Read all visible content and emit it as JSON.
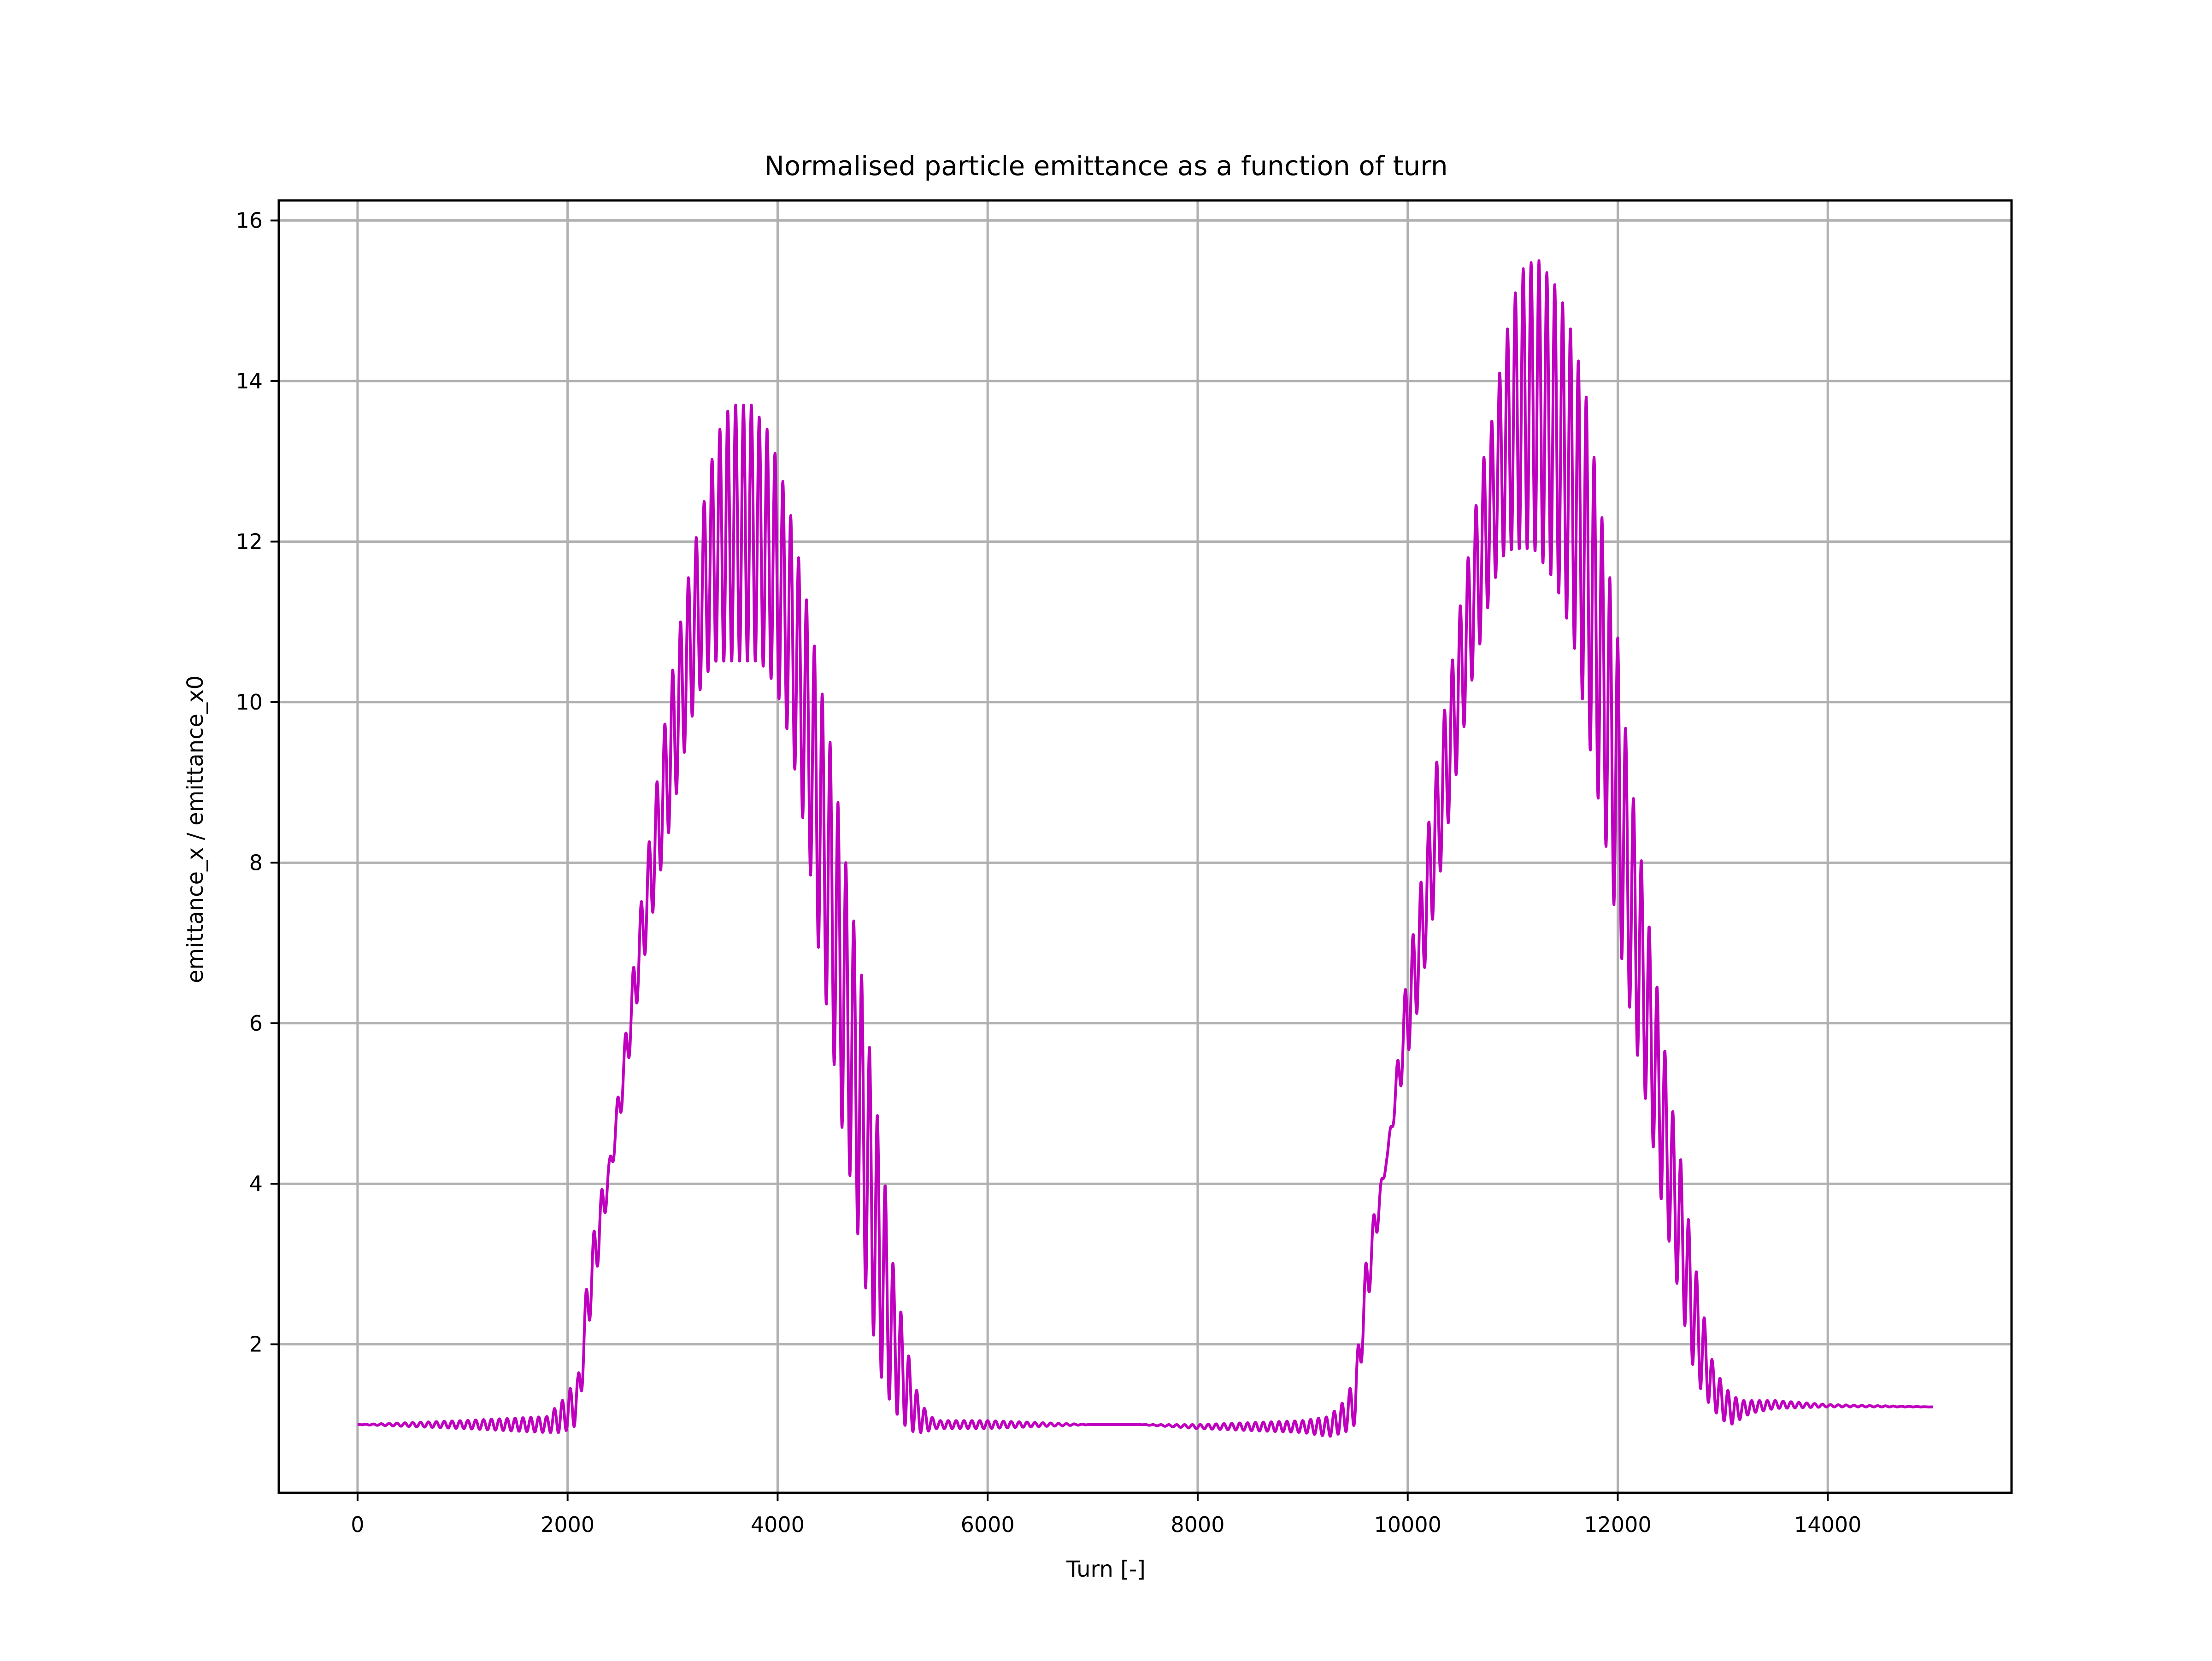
{
  "chart_data": {
    "type": "line",
    "title": "Normalised particle emittance as a function of turn",
    "xlabel": "Turn [-]",
    "ylabel": "emittance_x / emittance_x0",
    "xlim": [
      -750,
      15750
    ],
    "ylim": [
      0.15,
      16.25
    ],
    "xticks": [
      0,
      2000,
      4000,
      6000,
      8000,
      10000,
      12000,
      14000
    ],
    "yticks": [
      2,
      4,
      6,
      8,
      10,
      12,
      14,
      16
    ],
    "grid": true,
    "legend": "none",
    "series": [
      {
        "color": "#bf00bf",
        "description_of_shape": "",
        "x": [
          0,
          1000,
          1800,
          1950,
          2100,
          2200,
          2300,
          2400,
          2500,
          2600,
          2700,
          2800,
          2900,
          3000,
          3100,
          3200,
          3300,
          3400,
          3500,
          3600,
          3700,
          3750,
          3800,
          3900,
          4000,
          4100,
          4200,
          4300,
          4400,
          4500,
          4600,
          4700,
          4800,
          4900,
          5000,
          5100,
          5200,
          5300,
          5400,
          5500,
          5600,
          6000,
          7000,
          7450,
          8000,
          9000,
          9250,
          9400,
          9500,
          9600,
          9700,
          9800,
          9900,
          10000,
          10100,
          10200,
          10300,
          10400,
          10500,
          10600,
          10700,
          10800,
          10900,
          11000,
          11100,
          11200,
          11250,
          11300,
          11400,
          11500,
          11600,
          11700,
          11800,
          11900,
          12000,
          12100,
          12200,
          12300,
          12400,
          12500,
          12600,
          12700,
          12800,
          12900,
          13000,
          13100,
          13200,
          13300,
          13500,
          14000,
          15000
        ],
        "env_upper": [
          1.0,
          1.05,
          1.1,
          1.3,
          1.6,
          3.0,
          3.8,
          4.3,
          5.3,
          6.4,
          7.5,
          8.5,
          9.5,
          10.4,
          11.2,
          11.9,
          12.5,
          13.2,
          13.6,
          13.7,
          13.7,
          13.7,
          13.6,
          13.4,
          13.0,
          12.5,
          11.8,
          11.1,
          10.3,
          9.5,
          8.5,
          7.5,
          6.6,
          5.4,
          4.3,
          3.0,
          2.2,
          1.5,
          1.2,
          1.05,
          1.05,
          1.05,
          1.0,
          1.0,
          1.0,
          1.05,
          1.1,
          1.3,
          1.6,
          3.0,
          3.8,
          4.3,
          5.5,
          6.7,
          7.5,
          8.5,
          9.5,
          10.3,
          11.2,
          12.0,
          12.9,
          13.5,
          14.3,
          15.0,
          15.4,
          15.5,
          15.5,
          15.4,
          15.2,
          14.9,
          14.4,
          13.8,
          12.8,
          11.8,
          10.8,
          9.3,
          8.3,
          7.2,
          6.2,
          5.1,
          4.3,
          3.3,
          2.5,
          1.8,
          1.5,
          1.35,
          1.3,
          1.3,
          1.3,
          1.25,
          1.22
        ],
        "env_lower": [
          1.0,
          0.95,
          0.9,
          0.9,
          1.0,
          2.2,
          3.1,
          4.0,
          4.8,
          5.7,
          6.6,
          7.3,
          8.0,
          8.6,
          9.3,
          9.9,
          10.3,
          10.5,
          10.5,
          10.5,
          10.5,
          10.5,
          10.5,
          10.4,
          10.1,
          9.6,
          8.9,
          8.0,
          6.8,
          5.9,
          4.8,
          4.0,
          3.0,
          2.2,
          1.5,
          1.2,
          1.0,
          0.9,
          0.9,
          0.95,
          0.95,
          0.95,
          1.0,
          1.0,
          0.95,
          0.9,
          0.85,
          0.9,
          1.0,
          2.3,
          3.3,
          4.3,
          5.0,
          5.6,
          6.2,
          7.0,
          7.8,
          8.6,
          9.4,
          10.2,
          10.8,
          11.4,
          11.8,
          11.9,
          11.9,
          11.9,
          11.8,
          11.7,
          11.5,
          11.1,
          10.6,
          9.7,
          8.9,
          8.1,
          7.1,
          6.3,
          5.5,
          4.8,
          3.9,
          3.2,
          2.5,
          1.8,
          1.4,
          1.2,
          1.05,
          1.0,
          1.1,
          1.15,
          1.2,
          1.22,
          1.22
        ]
      }
    ]
  }
}
